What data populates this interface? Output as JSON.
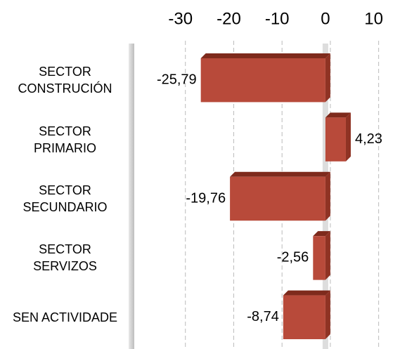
{
  "chart_data": {
    "type": "bar",
    "orientation": "horizontal",
    "categories": [
      "SECTOR CONSTRUCIÓN",
      "SECTOR PRIMARIO",
      "SECTOR SECUNDARIO",
      "SECTOR SERVIZOS",
      "SEN ACTIVIDADE"
    ],
    "values": [
      -25.79,
      4.23,
      -19.76,
      -2.56,
      -8.74
    ],
    "value_labels": [
      "-25,79",
      "4,23",
      "-19,76",
      "-2,56",
      "-8,74"
    ],
    "color": "#b84a3a",
    "xlim": [
      -40,
      15
    ],
    "xticks": [
      -30,
      -20,
      -10,
      0,
      10
    ],
    "grid": true
  }
}
